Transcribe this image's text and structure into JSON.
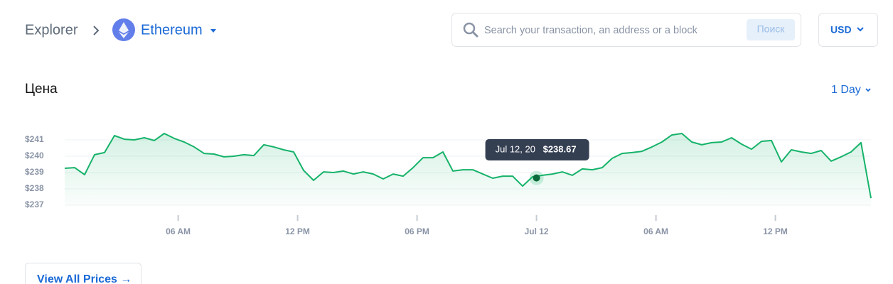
{
  "header": {
    "breadcrumb": "Explorer",
    "network": "Ethereum",
    "search_placeholder": "Search your transaction, an address or a block",
    "search_button": "Поиск",
    "currency": "USD"
  },
  "chart_data": {
    "type": "line",
    "title": "Цена",
    "range": "1 Day",
    "x": [
      0.3,
      0.8,
      1.3,
      1.8,
      2.3,
      2.8,
      3.3,
      3.8,
      4.3,
      4.8,
      5.3,
      5.8,
      6.3,
      6.8,
      7.3,
      7.8,
      8.3,
      8.8,
      9.3,
      9.8,
      10.3,
      10.8,
      11.3,
      11.8,
      12.3,
      12.8,
      13.3,
      13.8,
      14.3,
      14.8,
      15.3,
      15.8,
      16.3,
      16.8,
      17.3,
      17.8,
      18.3,
      18.8,
      19.3,
      19.8,
      20.3,
      20.8,
      21.3,
      21.8,
      22.3,
      22.8,
      23.3,
      23.8,
      24.3,
      24.8,
      25.3,
      25.8,
      26.3,
      26.8,
      27.3,
      27.8,
      28.3,
      28.8,
      29.3,
      29.8,
      30.3,
      30.8,
      31.3,
      31.8,
      32.3,
      32.8,
      33.3,
      33.8,
      34.3,
      34.8,
      35.3,
      35.8,
      36.3,
      36.8,
      37.3,
      37.8,
      38.3,
      38.8,
      39.3,
      39.8,
      40.3,
      40.8
    ],
    "series": [
      {
        "color": "#16b36a",
        "values": [
          239.26,
          239.3,
          238.87,
          240.09,
          240.22,
          241.26,
          241.04,
          241.0,
          241.13,
          240.96,
          241.39,
          241.09,
          240.87,
          240.57,
          240.17,
          240.13,
          239.96,
          240.0,
          240.09,
          240.04,
          240.7,
          240.57,
          240.39,
          240.26,
          239.13,
          238.52,
          239.04,
          239.0,
          239.09,
          238.91,
          239.04,
          238.91,
          238.61,
          238.91,
          238.78,
          239.3,
          239.91,
          239.91,
          240.26,
          239.09,
          239.17,
          239.17,
          238.91,
          238.65,
          238.78,
          238.78,
          238.17,
          238.74,
          238.83,
          238.91,
          239.04,
          238.83,
          239.22,
          239.17,
          239.3,
          239.87,
          240.17,
          240.22,
          240.3,
          240.57,
          240.87,
          241.3,
          241.39,
          240.87,
          240.7,
          240.83,
          240.87,
          241.13,
          240.74,
          240.43,
          240.91,
          240.96,
          239.65,
          240.39,
          240.26,
          240.17,
          240.35,
          239.7,
          239.96,
          240.26,
          240.83,
          237.43
        ]
      }
    ],
    "xlim": [
      0.3,
      40.8
    ],
    "xticks": [
      {
        "value": 6,
        "label": "06 AM"
      },
      {
        "value": 12,
        "label": "12 PM"
      },
      {
        "value": 18,
        "label": "06 PM"
      },
      {
        "value": 24,
        "label": "Jul 12"
      },
      {
        "value": 30,
        "label": "06 AM"
      },
      {
        "value": 36,
        "label": "12 PM"
      }
    ],
    "ylim": [
      237,
      241.5
    ],
    "yticks": [
      {
        "value": 237,
        "label": "$237"
      },
      {
        "value": 238,
        "label": "$238"
      },
      {
        "value": 239,
        "label": "$239"
      },
      {
        "value": 240,
        "label": "$240"
      },
      {
        "value": 241,
        "label": "$241"
      }
    ],
    "grid": true,
    "tooltip": {
      "label": "Jul 12, 20",
      "x": 24,
      "value": 238.67,
      "value_label": "$238.67"
    }
  },
  "footer": {
    "link": "View All Prices →"
  }
}
